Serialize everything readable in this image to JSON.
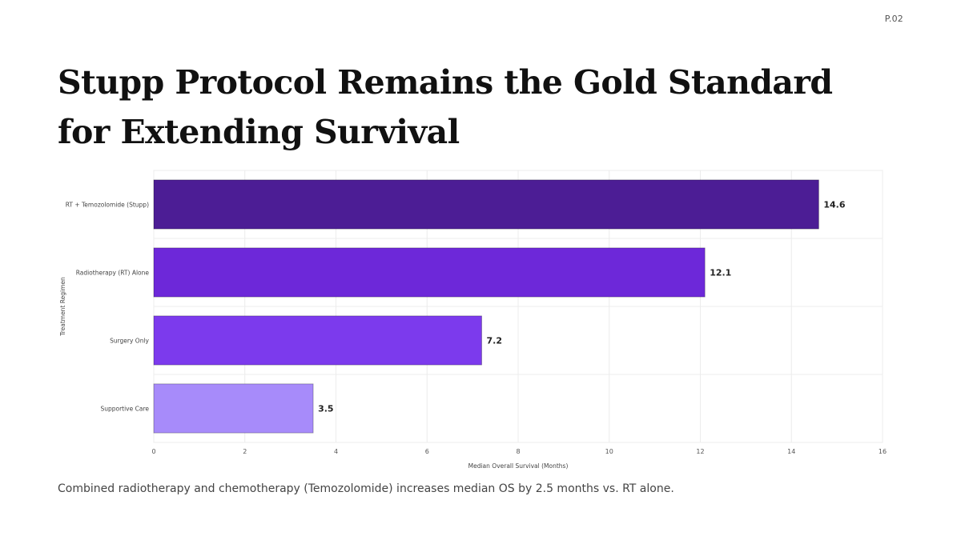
{
  "page": {
    "number": "P.02"
  },
  "slide": {
    "title": "Stupp Protocol Remains the Gold Standard for Extending Survival",
    "caption": "Combined radiotherapy and chemotherapy (Temozolomide) increases median OS by 2.5 months vs. RT alone."
  },
  "chart_data": {
    "type": "bar",
    "orientation": "horizontal",
    "categories": [
      "RT + Temozolomide (Stupp)",
      "Radiotherapy (RT) Alone",
      "Surgery Only",
      "Supportive Care"
    ],
    "values": [
      14.6,
      12.1,
      7.2,
      3.5
    ],
    "value_labels": [
      "14.6",
      "12.1",
      "7.2",
      "3.5"
    ],
    "bar_colors": [
      "#4c1d95",
      "#6d28d9",
      "#7c3aed",
      "#a78bfa"
    ],
    "xlabel": "Median Overall Survival (Months)",
    "ylabel": "Treatment Regimen",
    "xlim": [
      0,
      16
    ],
    "xticks": [
      0,
      2,
      4,
      6,
      8,
      10,
      12,
      14,
      16
    ],
    "grid": true,
    "legend": "none"
  }
}
